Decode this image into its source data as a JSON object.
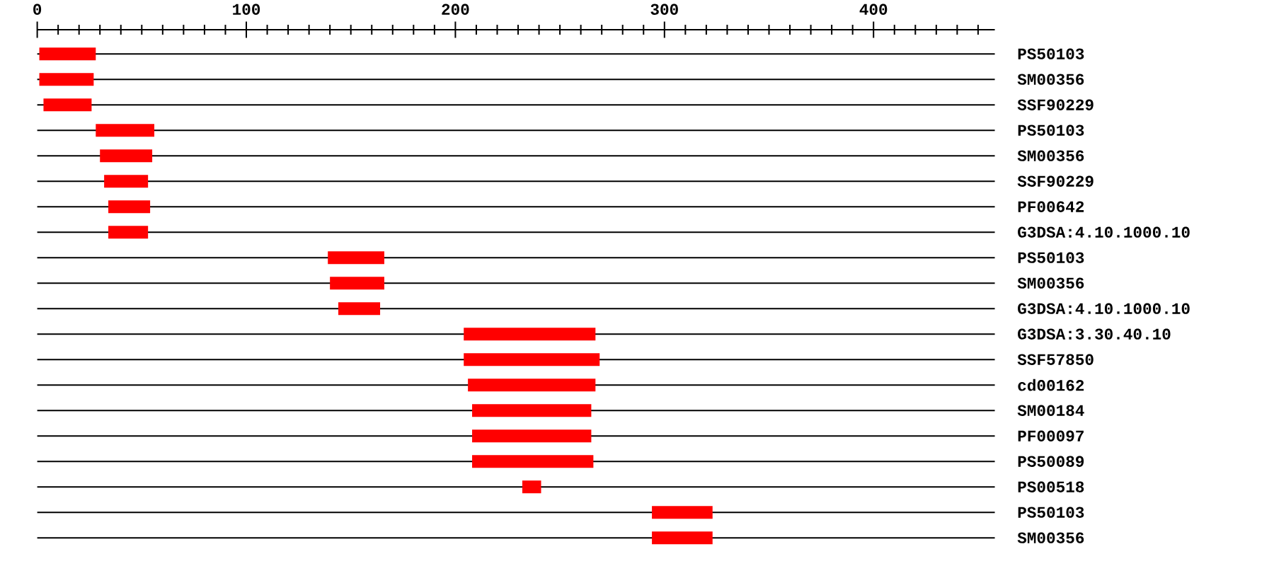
{
  "chart_data": {
    "type": "bar",
    "orientation": "horizontal",
    "categories": [
      "PS50103",
      "SM00356",
      "SSF90229",
      "PS50103",
      "SM00356",
      "SSF90229",
      "PF00642",
      "G3DSA:4.10.1000.10",
      "PS50103",
      "SM00356",
      "G3DSA:4.10.1000.10",
      "G3DSA:3.30.40.10",
      "SSF57850",
      "cd00162",
      "SM00184",
      "PF00097",
      "PS50089",
      "PS00518",
      "PS50103",
      "SM00356"
    ],
    "base": [
      1,
      1,
      3,
      28,
      30,
      32,
      34,
      34,
      139,
      140,
      144,
      204,
      204,
      206,
      208,
      208,
      208,
      232,
      294,
      294
    ],
    "values": [
      27,
      26,
      23,
      28,
      25,
      21,
      20,
      19,
      27,
      26,
      20,
      63,
      65,
      61,
      57,
      57,
      58,
      9,
      29,
      29
    ],
    "color": "#ff0000",
    "xlim": [
      0,
      458
    ],
    "xticks": [
      0,
      {
        "value": 10,
        "label": null
      },
      {
        "value": 20,
        "label": null
      },
      {
        "value": 30,
        "label": null
      },
      {
        "value": 40,
        "label": null
      },
      {
        "value": 50,
        "label": null
      },
      {
        "value": 60,
        "label": null
      },
      {
        "value": 70,
        "label": null
      },
      {
        "value": 80,
        "label": null
      },
      {
        "value": 90,
        "label": null
      },
      100,
      {
        "value": 110,
        "label": null
      },
      {
        "value": 120,
        "label": null
      },
      {
        "value": 130,
        "label": null
      },
      {
        "value": 140,
        "label": null
      },
      {
        "value": 150,
        "label": null
      },
      {
        "value": 160,
        "label": null
      },
      {
        "value": 170,
        "label": null
      },
      {
        "value": 180,
        "label": null
      },
      {
        "value": 190,
        "label": null
      },
      200,
      {
        "value": 210,
        "label": null
      },
      {
        "value": 220,
        "label": null
      },
      {
        "value": 230,
        "label": null
      },
      {
        "value": 240,
        "label": null
      },
      {
        "value": 250,
        "label": null
      },
      {
        "value": 260,
        "label": null
      },
      {
        "value": 270,
        "label": null
      },
      {
        "value": 280,
        "label": null
      },
      {
        "value": 290,
        "label": null
      },
      300,
      {
        "value": 310,
        "label": null
      },
      {
        "value": 320,
        "label": null
      },
      {
        "value": 330,
        "label": null
      },
      {
        "value": 340,
        "label": null
      },
      {
        "value": 350,
        "label": null
      },
      {
        "value": 360,
        "label": null
      },
      {
        "value": 370,
        "label": null
      },
      {
        "value": 380,
        "label": null
      },
      {
        "value": 390,
        "label": null
      },
      400,
      {
        "value": 410,
        "label": null
      },
      {
        "value": 420,
        "label": null
      },
      {
        "value": 430,
        "label": null
      },
      {
        "value": 440,
        "label": null
      },
      {
        "value": 450,
        "label": null
      }
    ],
    "grid": "y"
  }
}
